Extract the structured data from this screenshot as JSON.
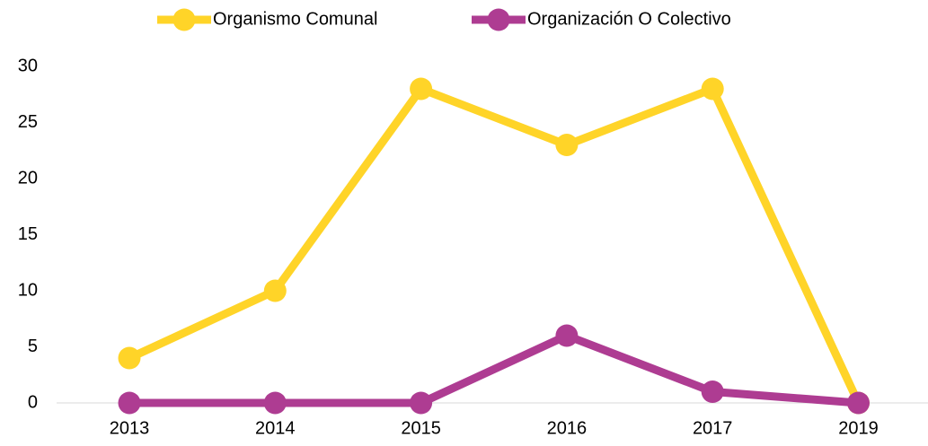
{
  "chart_data": {
    "type": "line",
    "categories": [
      "2013",
      "2014",
      "2015",
      "2016",
      "2017",
      "2019"
    ],
    "series": [
      {
        "name": "Organismo Comunal",
        "color": "#FFD428",
        "values": [
          4,
          10,
          28,
          23,
          28,
          0
        ]
      },
      {
        "name": "Organización O Colectivo",
        "color": "#AE3C92",
        "values": [
          0,
          0,
          0,
          6,
          1,
          0
        ]
      }
    ],
    "ylim": [
      0,
      30
    ],
    "yticks": [
      0,
      5,
      10,
      15,
      20,
      25,
      30
    ],
    "grid": false,
    "legend": "top"
  }
}
